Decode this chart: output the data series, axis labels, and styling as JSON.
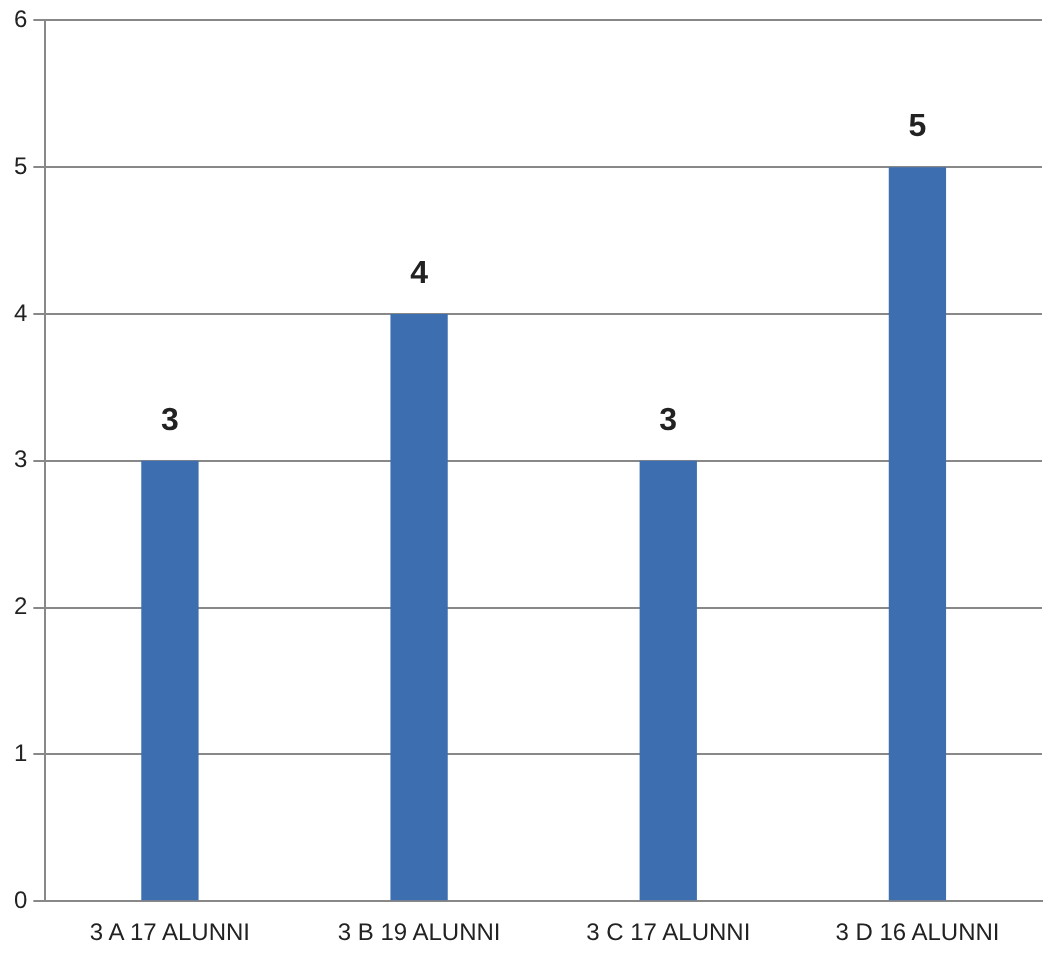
{
  "chart_data": {
    "type": "bar",
    "categories": [
      "3 A 17 ALUNNI",
      "3 B 19 ALUNNI",
      "3 C 17 ALUNNI",
      "3 D 16 ALUNNI"
    ],
    "values": [
      3,
      4,
      3,
      5
    ],
    "color": "#3c6eb0",
    "ylim": [
      0,
      6
    ],
    "yticks": [
      0,
      1,
      2,
      3,
      4,
      5,
      6
    ],
    "grid": "y",
    "data_labels": true,
    "legend": false
  }
}
